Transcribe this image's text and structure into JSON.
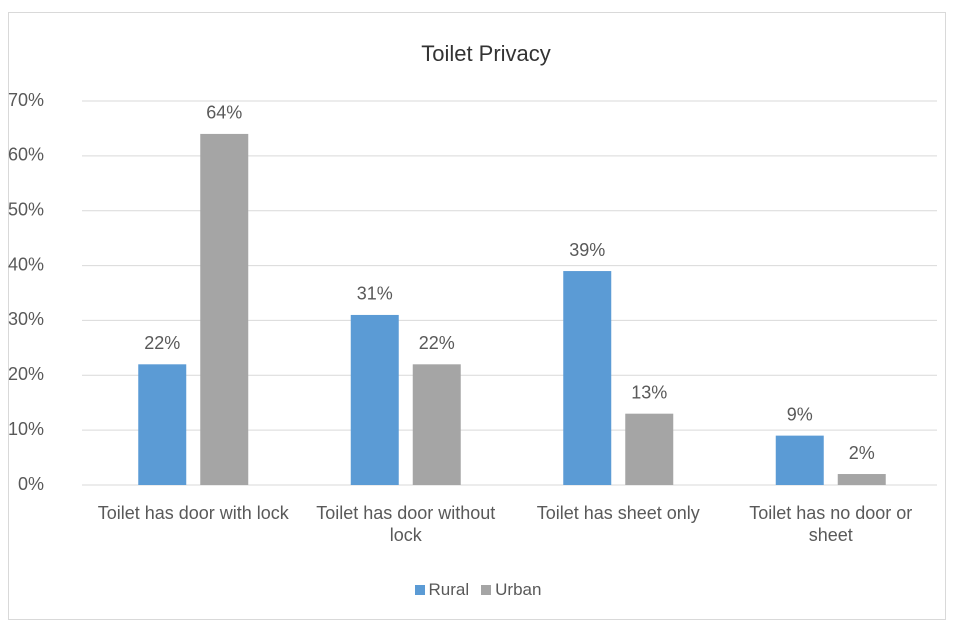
{
  "chart_data": {
    "type": "bar",
    "title": "Toilet Privacy",
    "categories": [
      "Toilet has door with lock",
      "Toilet has door without lock",
      "Toilet has sheet only",
      "Toilet has no door or sheet"
    ],
    "series": [
      {
        "name": "Rural",
        "color": "#5b9bd5",
        "values": [
          22,
          31,
          39,
          9
        ],
        "value_labels": [
          "22%",
          "31%",
          "39%",
          "9%"
        ]
      },
      {
        "name": "Urban",
        "color": "#a5a5a5",
        "values": [
          64,
          22,
          13,
          2
        ],
        "value_labels": [
          "64%",
          "22%",
          "13%",
          "2%"
        ]
      }
    ],
    "ylim": [
      0,
      70
    ],
    "yticks": [
      {
        "value": 0,
        "label": "0%"
      },
      {
        "value": 10,
        "label": "10%"
      },
      {
        "value": 20,
        "label": "20%"
      },
      {
        "value": 30,
        "label": "30%"
      },
      {
        "value": 40,
        "label": "40%"
      },
      {
        "value": 50,
        "label": "50%"
      },
      {
        "value": 60,
        "label": "60%"
      },
      {
        "value": 70,
        "label": "70%"
      }
    ],
    "grid": true,
    "legend": "bottom"
  }
}
